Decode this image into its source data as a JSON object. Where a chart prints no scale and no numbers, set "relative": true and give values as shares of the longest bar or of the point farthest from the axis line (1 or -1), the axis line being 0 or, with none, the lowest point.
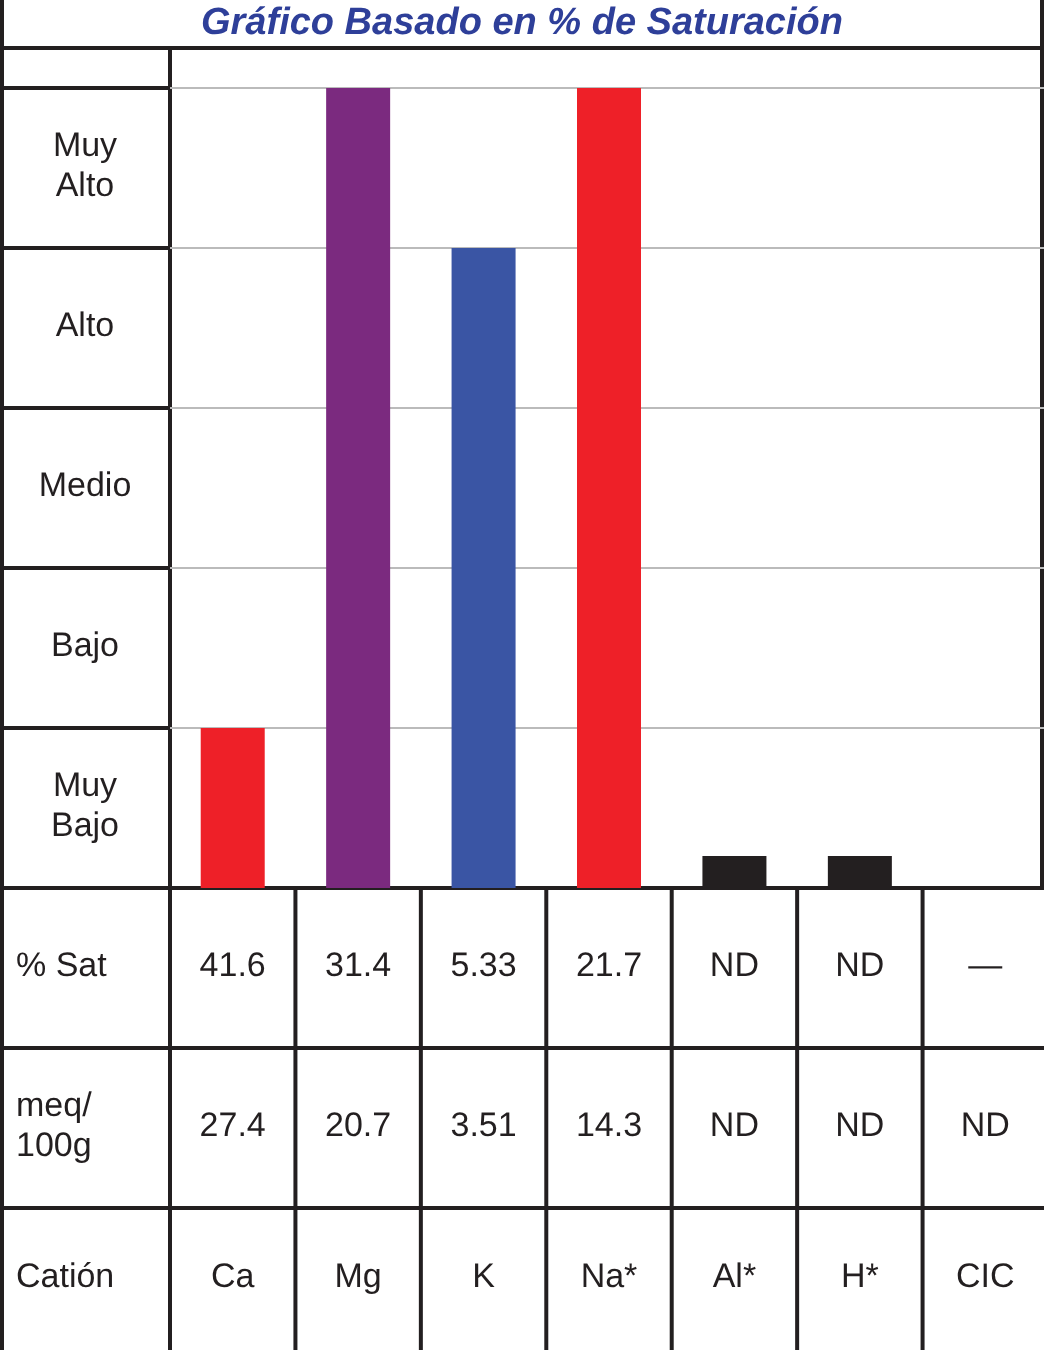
{
  "chart_data": {
    "type": "bar",
    "title": "Gráfico Basado en % de Saturación",
    "categories": [
      "Ca",
      "Mg",
      "K",
      "Na*",
      "Al*",
      "H*",
      "CIC"
    ],
    "values": [
      0.2,
      1,
      0.8,
      1,
      0.04,
      0.04,
      null
    ],
    "colors": [
      "#ee2028",
      "#7b2a7f",
      "#3a55a4",
      "#ee2028",
      "#231f20",
      "#231f20",
      null
    ],
    "relative": true,
    "grid": "y",
    "xlabel": "Catión",
    "annotations": [
      "Muy Bajo",
      "Bajo",
      "Medio",
      "Alto",
      "Muy Alto",
      "% Sat",
      "41.6",
      "31.4",
      "5.33",
      "21.7",
      "ND",
      "ND",
      "—",
      "meq/100g",
      "27.4",
      "20.7",
      "3.51",
      "14.3",
      "ND",
      "ND",
      "ND"
    ]
  }
}
